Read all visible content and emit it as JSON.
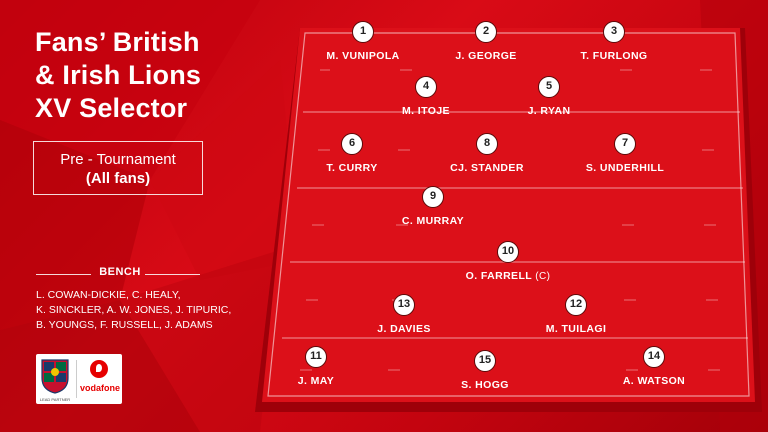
{
  "title": {
    "line1": "Fans’ British",
    "line2": "& Irish Lions",
    "line3": "XV Selector"
  },
  "phase": {
    "line1": "Pre - Tournament",
    "line2": "(All fans)"
  },
  "bench": {
    "heading": "BENCH",
    "lines": [
      "L. COWAN-DICKIE, C. HEALY,",
      "K. SINCKLER, A. W. JONES, J. TIPURIC,",
      "B. YOUNGS, F. RUSSELL, J. ADAMS"
    ]
  },
  "sponsor": {
    "partner_name": "vodafone",
    "lions_tag": "LEAD PARTNER"
  },
  "players": [
    {
      "number": "1",
      "name": "M. VUNIPOLA",
      "captain": ""
    },
    {
      "number": "2",
      "name": "J. GEORGE",
      "captain": ""
    },
    {
      "number": "3",
      "name": "T. FURLONG",
      "captain": ""
    },
    {
      "number": "4",
      "name": "M. ITOJE",
      "captain": ""
    },
    {
      "number": "5",
      "name": "J. RYAN",
      "captain": ""
    },
    {
      "number": "6",
      "name": "T. CURRY",
      "captain": ""
    },
    {
      "number": "8",
      "name": "CJ. STANDER",
      "captain": ""
    },
    {
      "number": "7",
      "name": "S. UNDERHILL",
      "captain": ""
    },
    {
      "number": "9",
      "name": "C. MURRAY",
      "captain": ""
    },
    {
      "number": "10",
      "name": "O. FARRELL",
      "captain": "(C)"
    },
    {
      "number": "13",
      "name": "J. DAVIES",
      "captain": ""
    },
    {
      "number": "12",
      "name": "M. TUILAGI",
      "captain": ""
    },
    {
      "number": "11",
      "name": "J. MAY",
      "captain": ""
    },
    {
      "number": "15",
      "name": "S. HOGG",
      "captain": ""
    },
    {
      "number": "14",
      "name": "A. WATSON",
      "captain": ""
    }
  ],
  "colors": {
    "background": "#c4040f",
    "pitch": "#d90b16",
    "text": "#ffffff"
  }
}
